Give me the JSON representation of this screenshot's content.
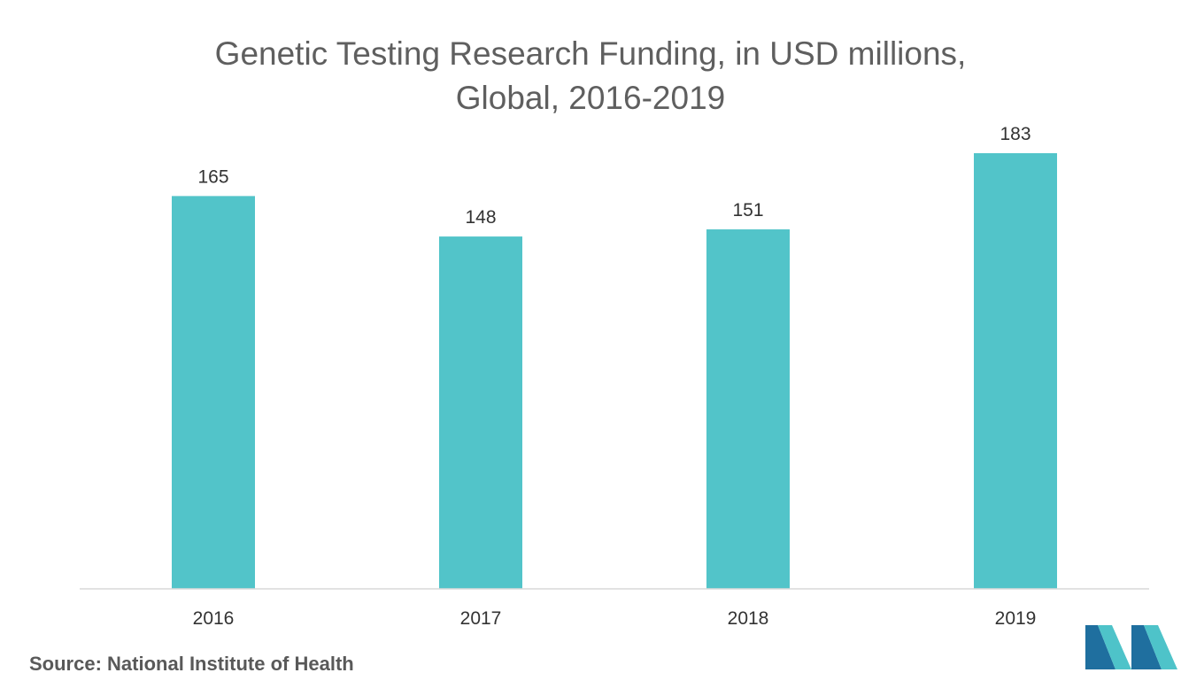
{
  "title_line1": "Genetic Testing Research Funding, in USD millions,",
  "title_line2": "Global, 2016-2019",
  "source_label": "Source:",
  "source_value": "National Institute of Health",
  "colors": {
    "bar": "#52c4c9",
    "axis": "#d9d9d9",
    "logo_dark": "#1f6f9f",
    "logo_light": "#4ec3c9"
  },
  "chart_data": {
    "type": "bar",
    "title": "Genetic Testing Research Funding, in USD millions, Global, 2016-2019",
    "categories": [
      "2016",
      "2017",
      "2018",
      "2019"
    ],
    "values": [
      165,
      148,
      151,
      183
    ],
    "xlabel": "",
    "ylabel": "",
    "ylim": [
      0,
      183
    ],
    "grid": false,
    "legend": "none",
    "data_labels": true
  }
}
